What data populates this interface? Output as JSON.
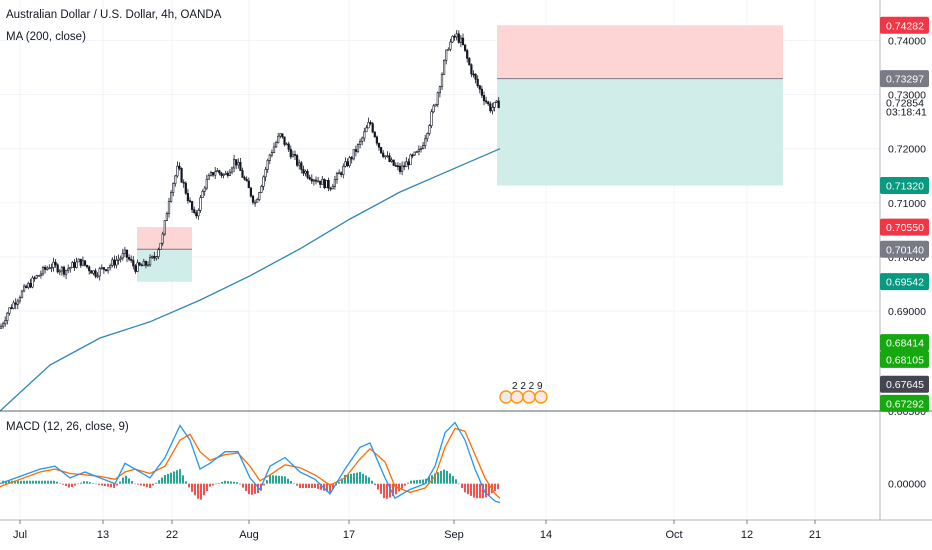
{
  "header": {
    "title": "Australian Dollar / U.S. Dollar, 4h, OANDA",
    "ma_label": "MA (200, close)",
    "macd_label": "MACD (12, 26, close, 9)"
  },
  "colors": {
    "candle": "#131722",
    "ma_line": "#2e87b5",
    "macd_line": "#2196f3",
    "signal_line": "#ff6d00",
    "hist_pos": "#26a69a",
    "hist_neg": "#ef5350",
    "stop_zone": "#fdd5d5",
    "target_zone": "#d1ede9",
    "badge_red": "#f23645",
    "badge_grey": "#787b86",
    "badge_teal": "#089981",
    "badge_green": "#16a80f",
    "badge_dark": "#434651"
  },
  "chart_data": [
    {
      "type": "candlestick",
      "title": "Australian Dollar / U.S. Dollar, 4h, OANDA",
      "x_ticks": [
        "Jul",
        "13",
        "22",
        "Aug",
        "17",
        "Sep",
        "14",
        "Oct",
        "12",
        "21"
      ],
      "y_ticks": [
        "0.74000",
        "0.73000",
        "0.72000",
        "0.71000",
        "0.70000",
        "0.69000"
      ],
      "y_range": [
        0.6715,
        0.7475
      ],
      "price_path": [
        [
          0,
          0.6868
        ],
        [
          8,
          0.69
        ],
        [
          20,
          0.693
        ],
        [
          35,
          0.696
        ],
        [
          50,
          0.6985
        ],
        [
          65,
          0.6975
        ],
        [
          80,
          0.6992
        ],
        [
          95,
          0.697
        ],
        [
          110,
          0.6985
        ],
        [
          125,
          0.7005
        ],
        [
          135,
          0.698
        ],
        [
          145,
          0.6985
        ],
        [
          155,
          0.7
        ],
        [
          163,
          0.704
        ],
        [
          170,
          0.712
        ],
        [
          178,
          0.7165
        ],
        [
          186,
          0.712
        ],
        [
          195,
          0.707
        ],
        [
          205,
          0.7135
        ],
        [
          215,
          0.716
        ],
        [
          225,
          0.715
        ],
        [
          235,
          0.718
        ],
        [
          245,
          0.714
        ],
        [
          255,
          0.71
        ],
        [
          262,
          0.714
        ],
        [
          270,
          0.719
        ],
        [
          280,
          0.7225
        ],
        [
          290,
          0.7195
        ],
        [
          300,
          0.7165
        ],
        [
          310,
          0.715
        ],
        [
          320,
          0.714
        ],
        [
          330,
          0.713
        ],
        [
          340,
          0.7155
        ],
        [
          350,
          0.718
        ],
        [
          360,
          0.721
        ],
        [
          370,
          0.725
        ],
        [
          380,
          0.72
        ],
        [
          390,
          0.7175
        ],
        [
          400,
          0.716
        ],
        [
          410,
          0.718
        ],
        [
          420,
          0.7195
        ],
        [
          428,
          0.724
        ],
        [
          436,
          0.729
        ],
        [
          442,
          0.734
        ],
        [
          448,
          0.739
        ],
        [
          456,
          0.741
        ],
        [
          462,
          0.7395
        ],
        [
          470,
          0.735
        ],
        [
          478,
          0.7315
        ],
        [
          484,
          0.7295
        ],
        [
          490,
          0.7275
        ],
        [
          496,
          0.728
        ],
        [
          500,
          0.7285
        ]
      ],
      "ma_path": [
        [
          0,
          0.6715
        ],
        [
          50,
          0.68
        ],
        [
          100,
          0.685
        ],
        [
          150,
          0.688
        ],
        [
          200,
          0.692
        ],
        [
          250,
          0.6965
        ],
        [
          300,
          0.7015
        ],
        [
          350,
          0.707
        ],
        [
          400,
          0.712
        ],
        [
          450,
          0.716
        ],
        [
          500,
          0.72
        ]
      ],
      "positions": [
        {
          "kind": "short",
          "x_start": 137,
          "x_end": 192,
          "stop": 0.7055,
          "entry": 0.7014,
          "target": 0.6954
        },
        {
          "kind": "short",
          "x_start": 497,
          "x_end": 783,
          "stop": 0.74282,
          "entry": 0.73297,
          "target": 0.7132
        }
      ],
      "price_labels": [
        {
          "text": "0.74282",
          "value": 0.74282,
          "style": "red"
        },
        {
          "text": "0.73297",
          "value": 0.73297,
          "style": "grey"
        },
        {
          "text": "0.72854",
          "value": 0.72854,
          "style": "plain"
        },
        {
          "text": "03:18:41",
          "value": 0.72685,
          "style": "plain"
        },
        {
          "text": "0.71320",
          "value": 0.7132,
          "style": "teal"
        },
        {
          "text": "0.70550",
          "value": 0.7055,
          "style": "red"
        },
        {
          "text": "0.70140",
          "value": 0.7014,
          "style": "grey"
        },
        {
          "text": "0.69542",
          "value": 0.69542,
          "style": "teal"
        },
        {
          "text": "0.68414",
          "value": 0.68414,
          "style": "green"
        },
        {
          "text": "0.68105",
          "value": 0.68105,
          "style": "green"
        },
        {
          "text": "0.67645",
          "value": 0.67645,
          "style": "dark"
        },
        {
          "text": "0.67292",
          "value": 0.67292,
          "style": "green"
        }
      ],
      "events_label": "2 2 2 9"
    },
    {
      "type": "line",
      "title": "MACD (12, 26, close, 9)",
      "y_ticks": [
        "0.00500",
        "0.00000"
      ],
      "y_range": [
        -0.0025,
        0.005
      ],
      "macd_path": [
        [
          0,
          0.0
        ],
        [
          20,
          0.0005
        ],
        [
          40,
          0.001
        ],
        [
          55,
          0.0012
        ],
        [
          70,
          0.0004
        ],
        [
          85,
          0.0008
        ],
        [
          100,
          0.0004
        ],
        [
          115,
          0.0
        ],
        [
          125,
          0.0014
        ],
        [
          135,
          0.001
        ],
        [
          150,
          0.0004
        ],
        [
          165,
          0.0018
        ],
        [
          180,
          0.004
        ],
        [
          190,
          0.003
        ],
        [
          200,
          0.001
        ],
        [
          210,
          0.0014
        ],
        [
          225,
          0.0022
        ],
        [
          238,
          0.0022
        ],
        [
          250,
          0.0004
        ],
        [
          260,
          -0.0004
        ],
        [
          270,
          0.0012
        ],
        [
          285,
          0.0018
        ],
        [
          300,
          0.0008
        ],
        [
          315,
          0.0003
        ],
        [
          330,
          -0.0007
        ],
        [
          345,
          0.001
        ],
        [
          360,
          0.0025
        ],
        [
          370,
          0.0028
        ],
        [
          385,
          0.0004
        ],
        [
          395,
          -0.001
        ],
        [
          410,
          -0.0004
        ],
        [
          425,
          0.0
        ],
        [
          435,
          0.0012
        ],
        [
          445,
          0.0035
        ],
        [
          455,
          0.0042
        ],
        [
          465,
          0.003
        ],
        [
          475,
          0.001
        ],
        [
          485,
          -0.0006
        ],
        [
          495,
          -0.0012
        ],
        [
          500,
          -0.0013
        ]
      ],
      "signal_path": [
        [
          0,
          -0.0002
        ],
        [
          20,
          0.0003
        ],
        [
          40,
          0.0008
        ],
        [
          55,
          0.001
        ],
        [
          70,
          0.0007
        ],
        [
          85,
          0.0006
        ],
        [
          100,
          0.0005
        ],
        [
          115,
          0.0003
        ],
        [
          125,
          0.0008
        ],
        [
          135,
          0.001
        ],
        [
          150,
          0.0007
        ],
        [
          165,
          0.0012
        ],
        [
          180,
          0.003
        ],
        [
          190,
          0.0034
        ],
        [
          200,
          0.0022
        ],
        [
          210,
          0.0016
        ],
        [
          225,
          0.002
        ],
        [
          238,
          0.0021
        ],
        [
          250,
          0.0012
        ],
        [
          260,
          0.0002
        ],
        [
          270,
          0.0006
        ],
        [
          285,
          0.0013
        ],
        [
          300,
          0.0011
        ],
        [
          315,
          0.0006
        ],
        [
          330,
          -0.0001
        ],
        [
          345,
          0.0004
        ],
        [
          360,
          0.0017
        ],
        [
          370,
          0.0024
        ],
        [
          385,
          0.0015
        ],
        [
          395,
          -0.0002
        ],
        [
          410,
          -0.0006
        ],
        [
          425,
          -0.0003
        ],
        [
          435,
          0.0005
        ],
        [
          445,
          0.0025
        ],
        [
          455,
          0.0038
        ],
        [
          465,
          0.0036
        ],
        [
          475,
          0.002
        ],
        [
          485,
          0.0004
        ],
        [
          495,
          -0.0007
        ],
        [
          500,
          -0.001
        ]
      ]
    }
  ]
}
